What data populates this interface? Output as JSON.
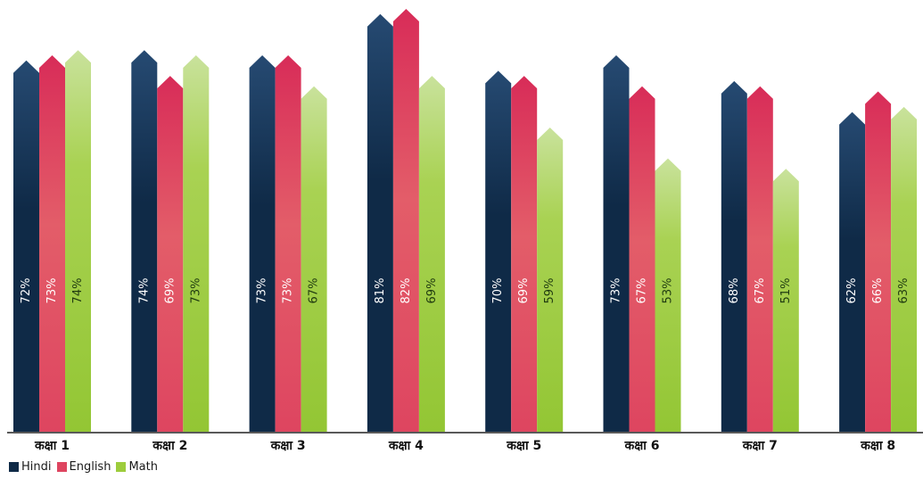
{
  "chart_data": {
    "type": "bar",
    "title": "",
    "xlabel": "",
    "ylabel": "",
    "ylim": [
      0,
      85
    ],
    "grid": false,
    "legend_position": "bottom-left",
    "categories": [
      "कक्षा 1",
      "कक्षा 2",
      "कक्षा 3",
      "कक्षा 4",
      "कक्षा 5",
      "कक्षा 6",
      "कक्षा 7",
      "कक्षा 8"
    ],
    "series": [
      {
        "name": "Hindi",
        "color": "#0f2a47",
        "values": [
          72,
          74,
          73,
          81,
          70,
          73,
          68,
          62
        ],
        "labels": [
          "72%",
          "74%",
          "73%",
          "81%",
          "70%",
          "73%",
          "68%",
          "62%"
        ]
      },
      {
        "name": "English",
        "color": "#de4560",
        "values": [
          73,
          69,
          73,
          82,
          69,
          67,
          67,
          66
        ],
        "labels": [
          "73%",
          "69%",
          "73%",
          "82%",
          "69%",
          "67%",
          "67%",
          "66%"
        ]
      },
      {
        "name": "Math",
        "color": "#9dcc3c",
        "values": [
          74,
          73,
          67,
          69,
          59,
          53,
          51,
          63
        ],
        "labels": [
          "74%",
          "73%",
          "67%",
          "69%",
          "59%",
          "53%",
          "51%",
          "63%"
        ]
      }
    ]
  }
}
